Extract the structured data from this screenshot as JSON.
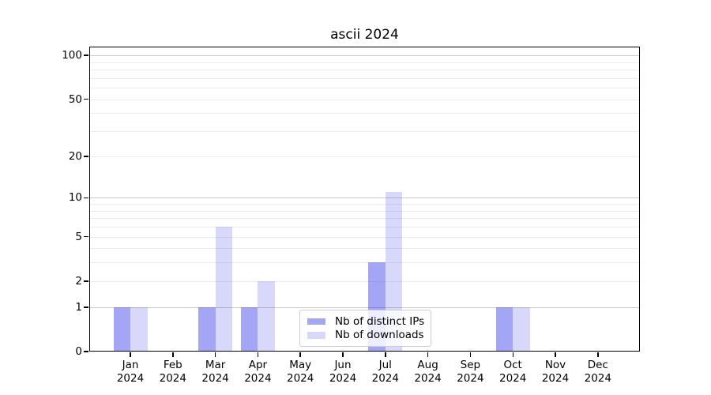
{
  "chart_data": {
    "type": "bar",
    "title": "ascii 2024",
    "xlabel": "",
    "ylabel": "",
    "categories": [
      "Jan 2024",
      "Feb 2024",
      "Mar 2024",
      "Apr 2024",
      "May 2024",
      "Jun 2024",
      "Jul 2024",
      "Aug 2024",
      "Sep 2024",
      "Oct 2024",
      "Nov 2024",
      "Dec 2024"
    ],
    "series": [
      {
        "name": "Nb of distinct IPs",
        "color": "rgba(50,50,235,0.44)",
        "color_hex_on_white": "#a5a5f6",
        "values": [
          1,
          0,
          1,
          1,
          0,
          0,
          3,
          0,
          0,
          1,
          0,
          0
        ]
      },
      {
        "name": "Nb of downloads",
        "color": "rgba(50,50,235,0.19)",
        "color_hex_on_white": "#dcdcfb",
        "values": [
          1,
          0,
          6,
          2,
          0,
          0,
          11,
          0,
          0,
          1,
          0,
          0
        ]
      }
    ],
    "yscale": "log10(1+y)",
    "yticks": [
      0,
      1,
      2,
      5,
      10,
      20,
      50,
      100
    ],
    "ylim": [
      0,
      115
    ],
    "grid": true,
    "grid_major_color": "#c8c8c8",
    "grid_minor_color": "#ececec",
    "legend_position": "lower center inside"
  }
}
